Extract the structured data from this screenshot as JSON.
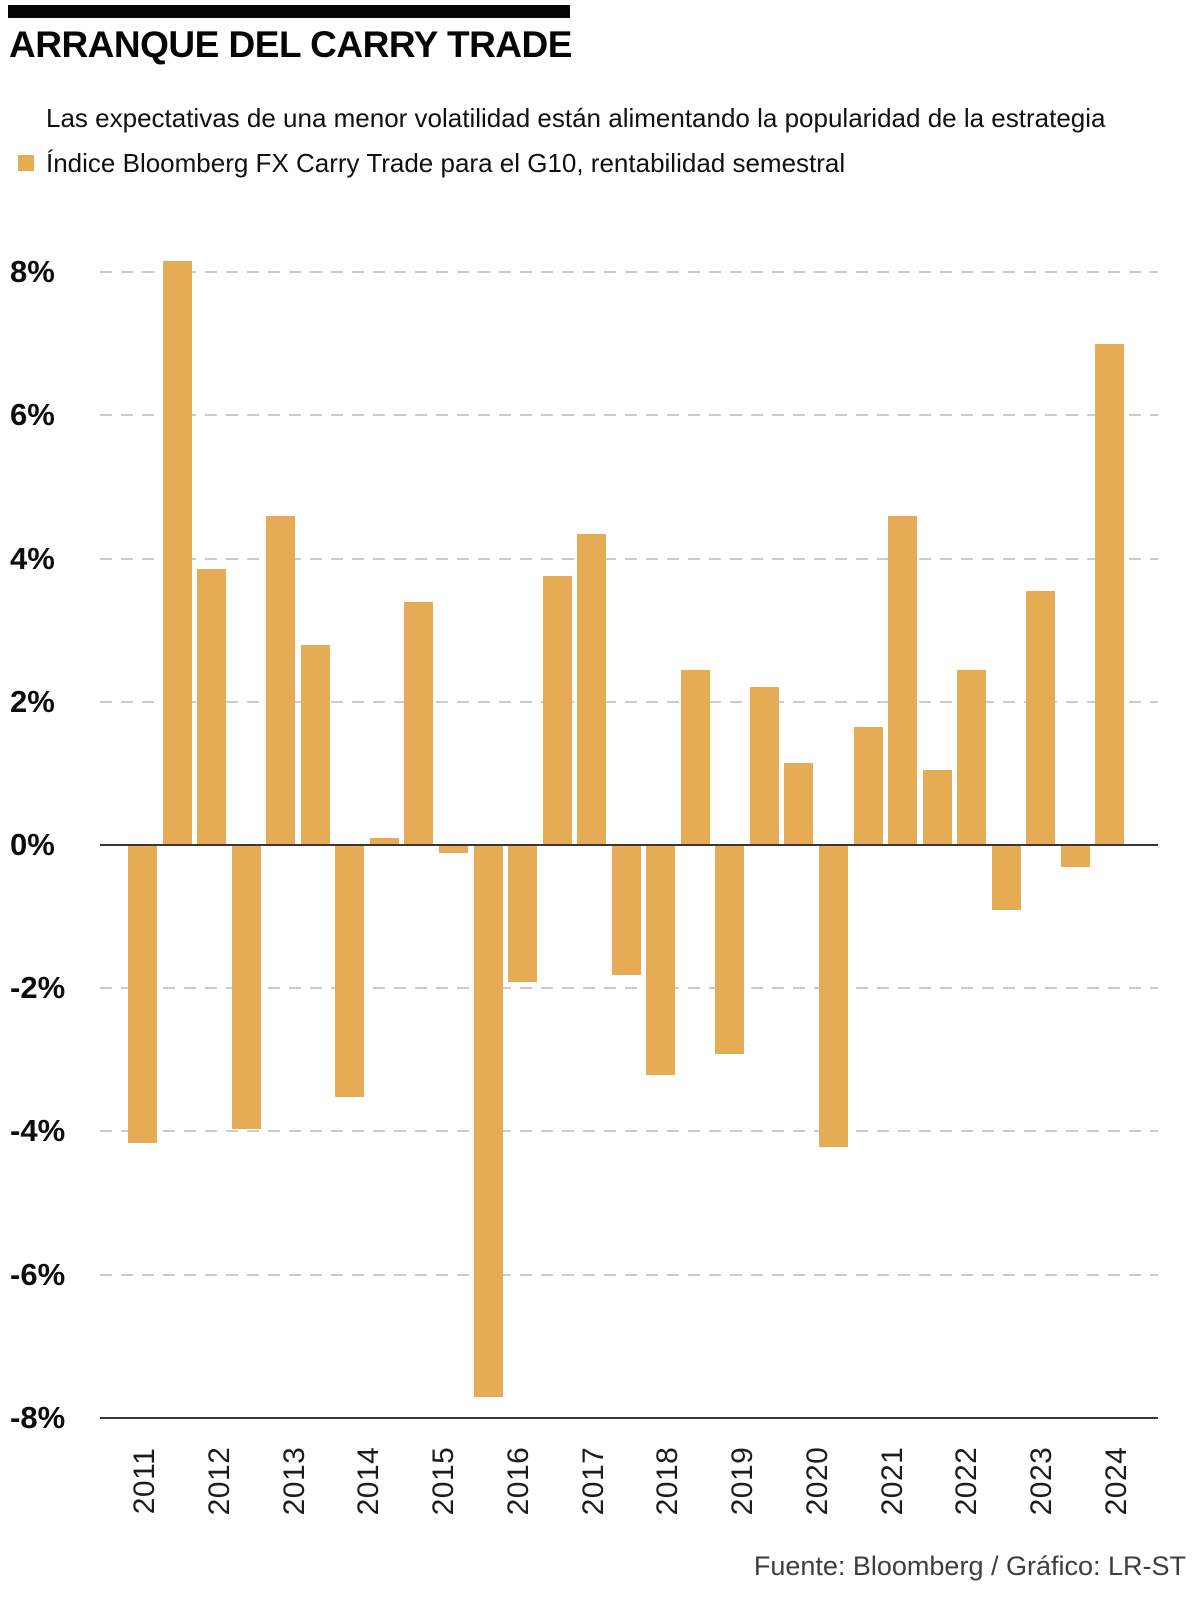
{
  "header": {
    "title": "ARRANQUE DEL CARRY TRADE",
    "subtitle": "Las expectativas de una menor volatilidad están alimentando la popularidad de la estrategia",
    "legend_label": "Índice Bloomberg FX Carry Trade para el G10, rentabilidad semestral"
  },
  "chart_data": {
    "type": "bar",
    "title": "ARRANQUE DEL CARRY TRADE",
    "subtitle": "Las expectativas de una menor volatilidad están alimentando la popularidad de la estrategia",
    "series_name": "Índice Bloomberg FX Carry Trade para el G10, rentabilidad semestral",
    "unit": "%",
    "bar_color": "#E5AC55",
    "grid": "horizontal-dashed",
    "legend_position": "top-left",
    "ylim": [
      -8,
      8.6
    ],
    "y_ticks": [
      {
        "value": 8,
        "label": "8%"
      },
      {
        "value": 6,
        "label": "6%"
      },
      {
        "value": 4,
        "label": "4%"
      },
      {
        "value": 2,
        "label": "2%"
      },
      {
        "value": 0,
        "label": "0%"
      },
      {
        "value": -2,
        "label": "-2%"
      },
      {
        "value": -4,
        "label": "-4%"
      },
      {
        "value": -6,
        "label": "-6%"
      },
      {
        "value": -8,
        "label": "-8%"
      }
    ],
    "x_labels": [
      "2011",
      "2012",
      "2013",
      "2014",
      "2015",
      "2016",
      "2017",
      "2018",
      "2019",
      "2020",
      "2021",
      "2022",
      "2023",
      "2024"
    ],
    "values": [
      -4.15,
      8.15,
      3.85,
      -3.95,
      4.6,
      2.8,
      -3.5,
      0.1,
      3.4,
      -0.1,
      -7.7,
      -1.9,
      3.75,
      4.35,
      -1.8,
      -3.2,
      2.45,
      -2.9,
      2.2,
      1.15,
      -4.2,
      1.65,
      4.6,
      1.05,
      2.45,
      -0.9,
      3.55,
      -0.3,
      7.0
    ]
  },
  "footer": {
    "source": "Fuente: Bloomberg / Gráfico: LR-ST"
  }
}
